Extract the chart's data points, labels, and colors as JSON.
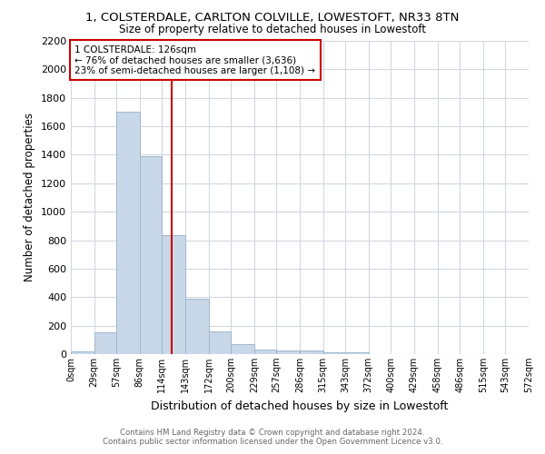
{
  "title_line1": "1, COLSTERDALE, CARLTON COLVILLE, LOWESTOFT, NR33 8TN",
  "title_line2": "Size of property relative to detached houses in Lowestoft",
  "xlabel": "Distribution of detached houses by size in Lowestoft",
  "ylabel": "Number of detached properties",
  "bar_color": "#c8d8e8",
  "bar_edgecolor": "#a0b8cc",
  "bins": [
    0,
    29,
    57,
    86,
    114,
    143,
    172,
    200,
    229,
    257,
    286,
    315,
    343,
    372,
    400,
    429,
    458,
    486,
    515,
    543,
    572
  ],
  "counts": [
    20,
    150,
    1700,
    1390,
    835,
    390,
    160,
    70,
    30,
    25,
    25,
    15,
    10,
    0,
    0,
    0,
    0,
    0,
    0,
    0
  ],
  "tick_labels": [
    "0sqm",
    "29sqm",
    "57sqm",
    "86sqm",
    "114sqm",
    "143sqm",
    "172sqm",
    "200sqm",
    "229sqm",
    "257sqm",
    "286sqm",
    "315sqm",
    "343sqm",
    "372sqm",
    "400sqm",
    "429sqm",
    "458sqm",
    "486sqm",
    "515sqm",
    "543sqm",
    "572sqm"
  ],
  "annotation_text": "1 COLSTERDALE: 126sqm\n← 76% of detached houses are smaller (3,636)\n23% of semi-detached houses are larger (1,108) →",
  "redline_x": 126,
  "annotation_box_color": "#cc0000",
  "ylim": [
    0,
    2200
  ],
  "yticks": [
    0,
    200,
    400,
    600,
    800,
    1000,
    1200,
    1400,
    1600,
    1800,
    2000,
    2200
  ],
  "background_color": "#ffffff",
  "grid_color": "#d0d8e0",
  "footer_line1": "Contains HM Land Registry data © Crown copyright and database right 2024.",
  "footer_line2": "Contains public sector information licensed under the Open Government Licence v3.0."
}
